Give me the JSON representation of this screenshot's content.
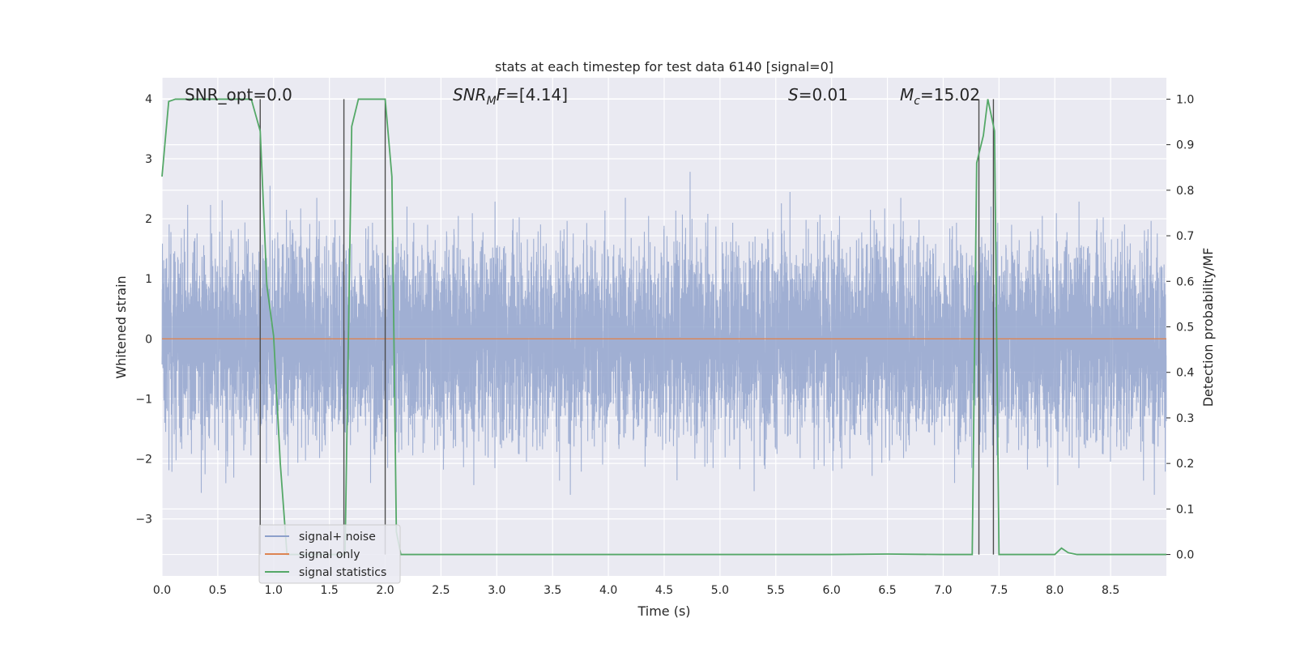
{
  "chart_data": {
    "type": "line",
    "title": "stats at each timestep for test data 6140 [signal=0]",
    "xlabel": "Time (s)",
    "ylabel": "Whitened strain",
    "ylabel_right": "Detection probability/MF",
    "xlim": [
      0.0,
      9.0
    ],
    "ylim": [
      -3.95,
      4.35
    ],
    "ylim_right": [
      -0.047,
      1.047
    ],
    "xticks": [
      0.0,
      0.5,
      1.0,
      1.5,
      2.0,
      2.5,
      3.0,
      3.5,
      4.0,
      4.5,
      5.0,
      5.5,
      6.0,
      6.5,
      7.0,
      7.5,
      8.0,
      8.5
    ],
    "xtick_labels": [
      "0.0",
      "0.5",
      "1.0",
      "1.5",
      "2.0",
      "2.5",
      "3.0",
      "3.5",
      "4.0",
      "4.5",
      "5.0",
      "5.5",
      "6.0",
      "6.5",
      "7.0",
      "7.5",
      "8.0",
      "8.5"
    ],
    "yticks": [
      -3,
      -2,
      -1,
      0,
      1,
      2,
      3,
      4
    ],
    "ytick_labels": [
      "−3",
      "−2",
      "−1",
      "0",
      "1",
      "2",
      "3",
      "4"
    ],
    "yticks_right": [
      0.0,
      0.1,
      0.2,
      0.3,
      0.4,
      0.5,
      0.6,
      0.7,
      0.8,
      0.9,
      1.0
    ],
    "ytick_labels_right": [
      "0.0",
      "0.1",
      "0.2",
      "0.3",
      "0.4",
      "0.5",
      "0.6",
      "0.7",
      "0.8",
      "0.9",
      "1.0"
    ],
    "grid": true,
    "legend_position": "lower-left",
    "series": [
      {
        "name": "signal+ noise",
        "color": "#8da0cb",
        "description_values": "noise trace, roughly within [-3.5, 3.5]"
      },
      {
        "name": "signal only",
        "color": "#dd8452",
        "x": [
          0.0,
          9.0
        ],
        "y": [
          0.0,
          0.0
        ]
      },
      {
        "name": "signal statistics",
        "color": "#55a868",
        "axis": "right",
        "x": [
          0.0,
          0.06,
          0.12,
          0.2,
          0.4,
          0.6,
          0.8,
          0.88,
          0.94,
          1.0,
          1.06,
          1.12,
          1.2,
          1.3,
          1.4,
          1.5,
          1.6,
          1.64,
          1.7,
          1.76,
          1.85,
          2.0,
          2.06,
          2.1,
          2.14,
          2.2,
          3.0,
          4.0,
          5.0,
          6.0,
          6.5,
          7.0,
          7.26,
          7.3,
          7.36,
          7.4,
          7.46,
          7.5,
          7.6,
          7.9,
          8.0,
          8.06,
          8.12,
          8.2,
          9.0
        ],
        "y": [
          0.83,
          0.995,
          1.0,
          1.0,
          1.0,
          1.0,
          1.0,
          0.93,
          0.59,
          0.48,
          0.2,
          0.0,
          0.0,
          0.0,
          0.0,
          0.0,
          0.0,
          0.0,
          0.94,
          1.0,
          1.0,
          1.0,
          0.83,
          0.05,
          0.0,
          0.0,
          0.0,
          0.0,
          0.0,
          0.0,
          0.001,
          0.0,
          0.0,
          0.86,
          0.92,
          1.0,
          0.93,
          0.0,
          0.0,
          0.0,
          0.0,
          0.014,
          0.004,
          0.0,
          0.0
        ]
      }
    ],
    "vlines": [
      0.88,
      1.63,
      2.0,
      7.32,
      7.45
    ],
    "annotations": [
      {
        "text": "SNR_opt=0.0",
        "x": 0.2
      },
      {
        "text": "=[4.14]",
        "x": 2.6
      },
      {
        "text": "=0.01",
        "x": 5.6
      },
      {
        "text": "=15.02",
        "x": 6.6
      }
    ]
  },
  "legend": {
    "items": [
      {
        "label": "signal+ noise",
        "color": "#8da0cb"
      },
      {
        "label": "signal only",
        "color": "#dd8452"
      },
      {
        "label": "signal statistics",
        "color": "#55a868"
      }
    ]
  }
}
